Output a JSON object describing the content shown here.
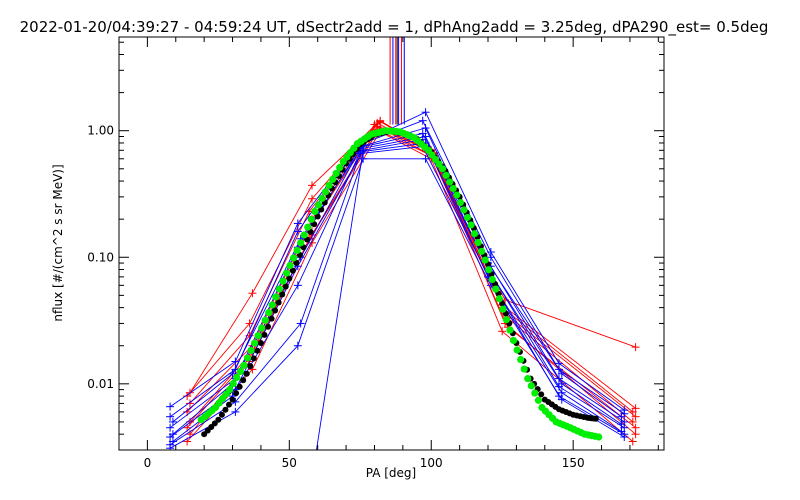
{
  "chart_data": {
    "type": "scatter",
    "title": "2022-01-20/04:39:27 - 04:59:24 UT, dSectr2add = 1, dPhAng2add = 3.25deg, dPA290_est=   0.5deg",
    "xlabel": "PA [deg]",
    "ylabel": "nflux [#/(cm^2 s sr MeV)]",
    "xlim": [
      -10,
      182
    ],
    "ylim": [
      0.003,
      5.5
    ],
    "yscale": "log",
    "x_ticks": [
      {
        "value": 0,
        "label": "0"
      },
      {
        "value": 50,
        "label": "50"
      },
      {
        "value": 100,
        "label": "100"
      },
      {
        "value": 150,
        "label": "150"
      }
    ],
    "y_ticks": [
      {
        "value": 0.01,
        "label": "0.01"
      },
      {
        "value": 0.1,
        "label": "0.10"
      },
      {
        "value": 1,
        "label": "1.00"
      }
    ],
    "grid": false,
    "series": [
      {
        "color": "#ff0000",
        "x": [
          15,
          37,
          58,
          82,
          99,
          126,
          172
        ],
        "y": [
          0.0085,
          0.052,
          0.37,
          1.2,
          0.72,
          0.046,
          0.0195
        ]
      },
      {
        "color": "#ff0000",
        "x": [
          14,
          36,
          58,
          82,
          100,
          125,
          172
        ],
        "y": [
          0.008,
          0.03,
          0.29,
          1.18,
          0.7,
          0.042,
          0.0064
        ]
      },
      {
        "color": "#ff0000",
        "x": [
          15,
          36,
          57,
          81,
          100,
          125,
          171
        ],
        "y": [
          0.007,
          0.024,
          0.23,
          1.15,
          0.68,
          0.04,
          0.006
        ]
      },
      {
        "color": "#ff0000",
        "x": [
          14,
          37,
          58,
          80,
          101,
          126,
          172
        ],
        "y": [
          0.006,
          0.02,
          0.2,
          1.12,
          0.67,
          0.036,
          0.0055
        ]
      },
      {
        "color": "#ff0000",
        "x": [
          15,
          37,
          57,
          81,
          101,
          127,
          171
        ],
        "y": [
          0.005,
          0.018,
          0.17,
          1.08,
          0.66,
          0.033,
          0.005
        ]
      },
      {
        "color": "#ff0000",
        "x": [
          14,
          36,
          58,
          82,
          100,
          127,
          172
        ],
        "y": [
          0.0045,
          0.016,
          0.15,
          1.05,
          0.64,
          0.028,
          0.0045
        ]
      },
      {
        "color": "#ff0000",
        "x": [
          15,
          36,
          57,
          81,
          101,
          126,
          172
        ],
        "y": [
          0.004,
          0.015,
          0.14,
          1.02,
          0.62,
          0.03,
          0.004
        ]
      },
      {
        "color": "#ff0000",
        "x": [
          14,
          37,
          58,
          82,
          100,
          125,
          171
        ],
        "y": [
          0.0035,
          0.013,
          0.13,
          0.98,
          0.6,
          0.026,
          0.0035
        ]
      },
      {
        "color": "#0000ff",
        "x": [
          8,
          31,
          53,
          75,
          98,
          121,
          145,
          168
        ],
        "y": [
          0.0066,
          0.015,
          0.185,
          0.8,
          1.4,
          0.11,
          0.0145,
          0.0062
        ]
      },
      {
        "color": "#0000ff",
        "x": [
          8,
          31,
          53,
          75,
          97,
          121,
          145,
          168
        ],
        "y": [
          0.0055,
          0.013,
          0.16,
          0.78,
          1.2,
          0.1,
          0.013,
          0.0058
        ]
      },
      {
        "color": "#0000ff",
        "x": [
          9,
          30,
          54,
          76,
          98,
          120,
          146,
          167
        ],
        "y": [
          0.005,
          0.012,
          0.14,
          0.76,
          1.05,
          0.09,
          0.012,
          0.0055
        ]
      },
      {
        "color": "#0000ff",
        "x": [
          8,
          31,
          53,
          75,
          97,
          121,
          145,
          168
        ],
        "y": [
          0.0045,
          0.011,
          0.12,
          0.74,
          0.95,
          0.085,
          0.011,
          0.005
        ]
      },
      {
        "color": "#0000ff",
        "x": [
          9,
          30,
          54,
          75,
          98,
          120,
          146,
          167
        ],
        "y": [
          0.004,
          0.01,
          0.1,
          0.72,
          0.9,
          0.08,
          0.01,
          0.0048
        ]
      },
      {
        "color": "#0000ff",
        "x": [
          8,
          31,
          53,
          76,
          97,
          121,
          145,
          168
        ],
        "y": [
          0.0038,
          0.009,
          0.085,
          0.7,
          0.85,
          0.075,
          0.0095,
          0.0045
        ]
      },
      {
        "color": "#0000ff",
        "x": [
          9,
          30,
          53,
          75,
          98,
          120,
          146,
          167
        ],
        "y": [
          0.0035,
          0.008,
          0.06,
          0.68,
          0.8,
          0.07,
          0.0085,
          0.0042
        ]
      },
      {
        "color": "#0000ff",
        "x": [
          8,
          31,
          54,
          75,
          97,
          121,
          145,
          168
        ],
        "y": [
          0.0033,
          0.0072,
          0.03,
          0.66,
          0.75,
          0.065,
          0.008,
          0.004
        ]
      },
      {
        "color": "#0000ff",
        "x": [
          8,
          31,
          53,
          76,
          98,
          121,
          146,
          168
        ],
        "y": [
          0.0031,
          0.006,
          0.02,
          0.6,
          0.6,
          0.06,
          0.0075,
          0.0038
        ]
      },
      {
        "color": "#0000ff",
        "x": [
          59,
          76
        ],
        "y": [
          0.0025,
          0.7
        ]
      }
    ],
    "fit_black": {
      "color": "#000000",
      "x": [
        20,
        25,
        30,
        35,
        40,
        45,
        50,
        55,
        60,
        65,
        70,
        75,
        80,
        85,
        90,
        95,
        100,
        105,
        110,
        115,
        120,
        125,
        130,
        135,
        140,
        145,
        150,
        155,
        158
      ],
      "y": [
        0.004,
        0.0052,
        0.0075,
        0.012,
        0.021,
        0.038,
        0.068,
        0.12,
        0.21,
        0.35,
        0.55,
        0.78,
        0.93,
        0.99,
        0.96,
        0.86,
        0.68,
        0.48,
        0.3,
        0.17,
        0.088,
        0.043,
        0.021,
        0.011,
        0.0075,
        0.0063,
        0.0057,
        0.0054,
        0.0053
      ]
    },
    "fit_green": {
      "color": "#00ee00",
      "x": [
        19,
        24,
        29,
        34,
        39,
        44,
        49,
        54,
        59,
        64,
        69,
        74,
        79,
        84,
        89,
        94,
        99,
        104,
        109,
        114,
        119,
        124,
        129,
        134,
        139,
        144,
        149,
        154,
        159
      ],
      "y": [
        0.0052,
        0.0065,
        0.009,
        0.014,
        0.024,
        0.042,
        0.075,
        0.13,
        0.23,
        0.37,
        0.57,
        0.79,
        0.94,
        1.0,
        0.98,
        0.88,
        0.7,
        0.5,
        0.31,
        0.18,
        0.095,
        0.047,
        0.022,
        0.011,
        0.0065,
        0.005,
        0.0045,
        0.004,
        0.0038
      ]
    },
    "vertical_lines": [
      {
        "x": 85.5,
        "color": "#ff0000"
      },
      {
        "x": 86.5,
        "color": "#0000ff"
      },
      {
        "x": 87.5,
        "color": "#ff0000"
      },
      {
        "x": 88.0,
        "color": "#000000"
      },
      {
        "x": 88.5,
        "color": "#0000ff"
      },
      {
        "x": 89.5,
        "color": "#ff0000"
      },
      {
        "x": 90.5,
        "color": "#0000ff"
      }
    ]
  }
}
